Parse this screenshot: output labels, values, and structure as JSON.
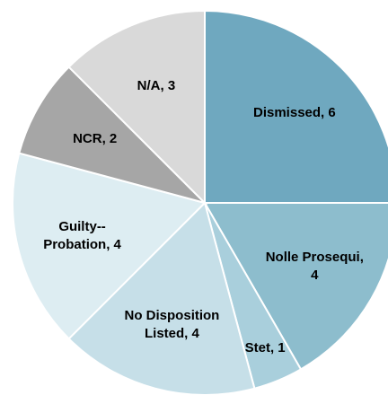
{
  "chart_data": {
    "type": "pie",
    "categories": [
      "Dismissed",
      "Nolle Prosequi",
      "Stet",
      "No Disposition Listed",
      "Guilty--Probation",
      "NCR",
      "N/A"
    ],
    "values": [
      6,
      4,
      1,
      4,
      4,
      2,
      3
    ],
    "value_labels": [
      "Dismissed, 6",
      "Nolle Prosequi, 4",
      "Stet, 1",
      "No Disposition Listed, 4",
      "Guilty--Probation, 4",
      "NCR, 2",
      "N/A, 3"
    ],
    "colors": [
      "#6fa8bf",
      "#8dbdcd",
      "#a9cfdc",
      "#c6dfe8",
      "#ddedf2",
      "#a6a6a6",
      "#d9d9d9"
    ]
  }
}
